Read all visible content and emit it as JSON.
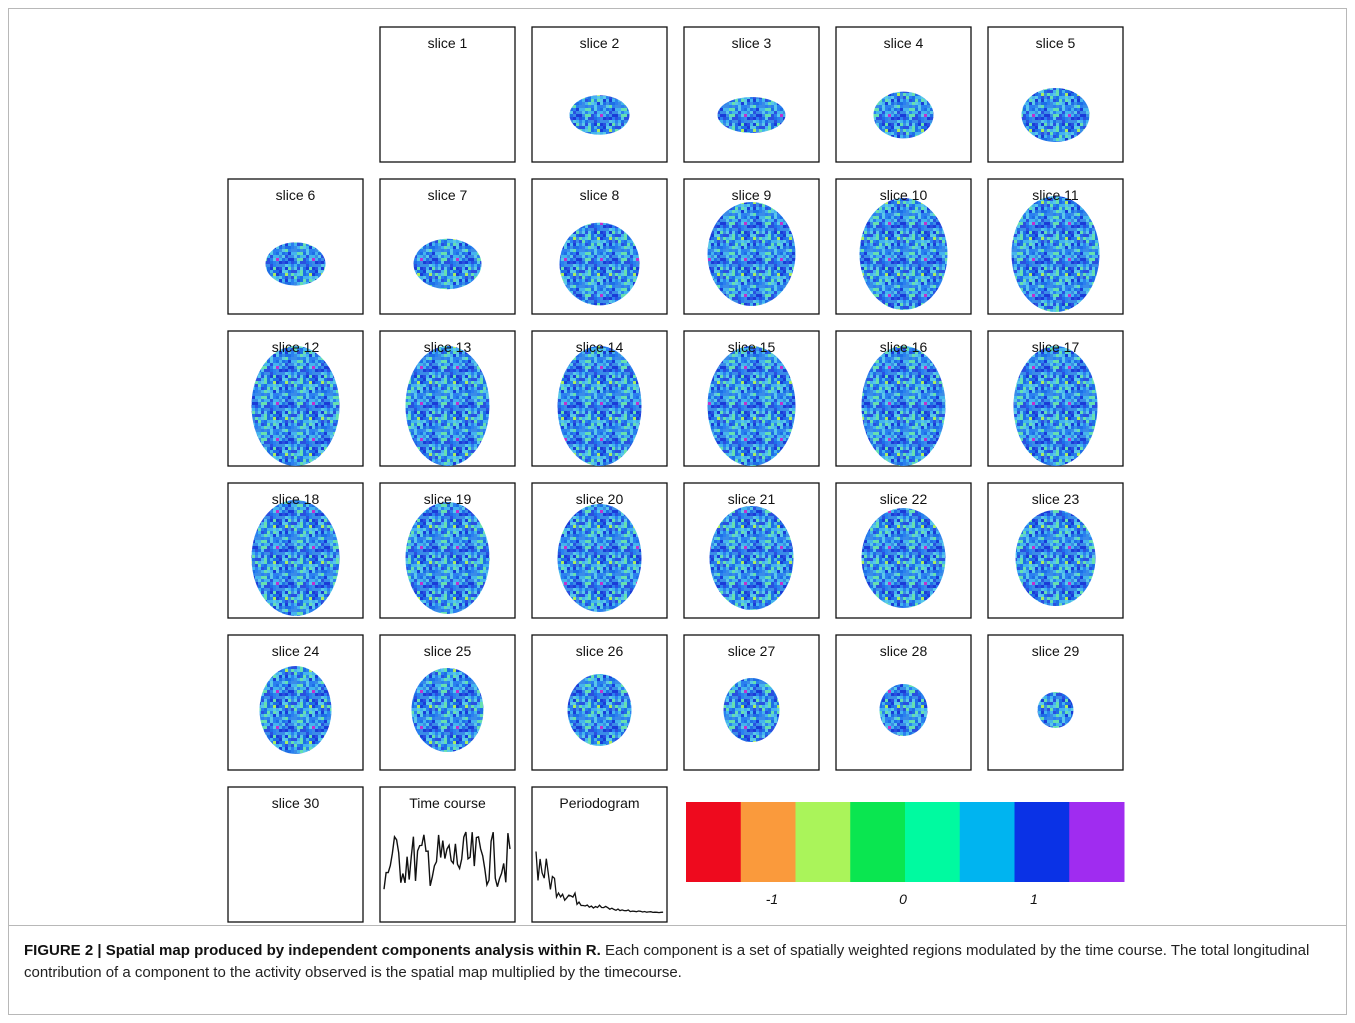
{
  "figure": {
    "panels": [
      "slice 1",
      "slice 2",
      "slice 3",
      "slice 4",
      "slice 5",
      "slice 6",
      "slice 7",
      "slice 8",
      "slice 9",
      "slice 10",
      "slice 11",
      "slice 12",
      "slice 13",
      "slice 14",
      "slice 15",
      "slice 16",
      "slice 17",
      "slice 18",
      "slice 19",
      "slice 20",
      "slice 21",
      "slice 22",
      "slice 23",
      "slice 24",
      "slice 25",
      "slice 26",
      "slice 27",
      "slice 28",
      "slice 29",
      "slice 30"
    ],
    "time_course_title": "Time course",
    "periodogram_title": "Periodogram",
    "colorbar": {
      "colors": [
        "#ee0a1e",
        "#fa9a3c",
        "#aaf45a",
        "#0ae650",
        "#00faa0",
        "#00b4f0",
        "#0a32e6",
        "#a02cf0"
      ],
      "labels": [
        "-1",
        "0",
        "1"
      ]
    },
    "caption": {
      "title": "FIGURE 2 | Spatial map produced by independent components analysis within R.",
      "text": "Each component is a set of spatially weighted regions modulated by the time course. The total longitudinal contribution of a component to the activity observed is the spatial map multiplied by the timecourse."
    }
  }
}
